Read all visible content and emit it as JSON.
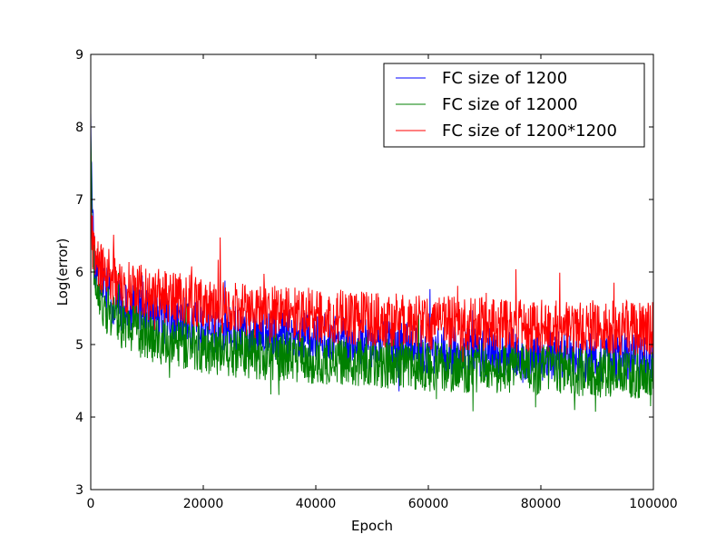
{
  "chart_data": {
    "type": "line",
    "title": "",
    "xlabel": "Epoch",
    "ylabel": "Log(error)",
    "xlim": [
      0,
      100000
    ],
    "ylim": [
      3,
      9
    ],
    "x_ticks": [
      0,
      20000,
      40000,
      60000,
      80000,
      100000
    ],
    "x_tick_labels": [
      "0",
      "20000",
      "40000",
      "60000",
      "80000",
      "100000"
    ],
    "y_ticks": [
      3,
      4,
      5,
      6,
      7,
      8,
      9
    ],
    "y_tick_labels": [
      "3",
      "4",
      "5",
      "6",
      "7",
      "8",
      "9"
    ],
    "grid": false,
    "legend_position": "top-right",
    "series": [
      {
        "name": "FC size of 1200",
        "color": "#0000ff",
        "x": [
          0,
          300,
          800,
          1500,
          3000,
          5000,
          10000,
          20000,
          30000,
          40000,
          50000,
          60000,
          70000,
          80000,
          90000,
          100000
        ],
        "values": [
          8.2,
          6.6,
          6.1,
          5.9,
          5.7,
          5.55,
          5.4,
          5.25,
          5.15,
          5.1,
          5.0,
          4.95,
          4.9,
          4.85,
          4.82,
          4.8
        ],
        "noise": 0.35
      },
      {
        "name": "FC size of 12000",
        "color": "#008000",
        "x": [
          0,
          300,
          800,
          1500,
          3000,
          5000,
          10000,
          20000,
          30000,
          40000,
          50000,
          60000,
          70000,
          80000,
          90000,
          100000
        ],
        "values": [
          7.9,
          6.3,
          5.9,
          5.65,
          5.45,
          5.3,
          5.1,
          4.95,
          4.85,
          4.8,
          4.75,
          4.7,
          4.67,
          4.65,
          4.62,
          4.6
        ],
        "noise": 0.35
      },
      {
        "name": "FC size of 1200*1200",
        "color": "#ff0000",
        "x": [
          0,
          300,
          800,
          1500,
          3000,
          5000,
          10000,
          20000,
          30000,
          40000,
          50000,
          60000,
          70000,
          80000,
          90000,
          100000
        ],
        "values": [
          7.0,
          6.4,
          6.2,
          6.05,
          5.95,
          5.85,
          5.7,
          5.55,
          5.45,
          5.4,
          5.35,
          5.3,
          5.28,
          5.25,
          5.23,
          5.22
        ],
        "noise": 0.38
      }
    ]
  }
}
